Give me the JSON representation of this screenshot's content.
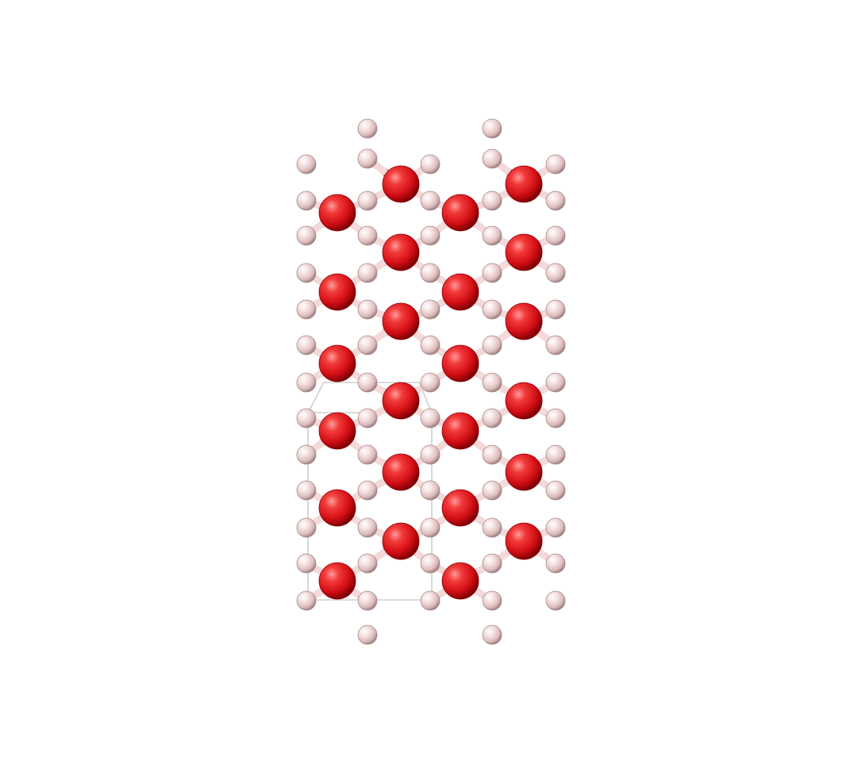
{
  "scene": {
    "background": "#ffffff",
    "elements": {
      "oxygen": {
        "color": "#e8121a",
        "highlight": "#ff8a8a",
        "shade": "#8e0006"
      },
      "hydrogen": {
        "color": "#f1d2d2",
        "highlight": "#ffffff",
        "shade": "#a88a8a"
      }
    },
    "bond_colors": {
      "oxygen_half": "#e30f16",
      "hydrogen_half": "#f3d9d9"
    },
    "cell_outline_color": "#cfcfcf"
  }
}
